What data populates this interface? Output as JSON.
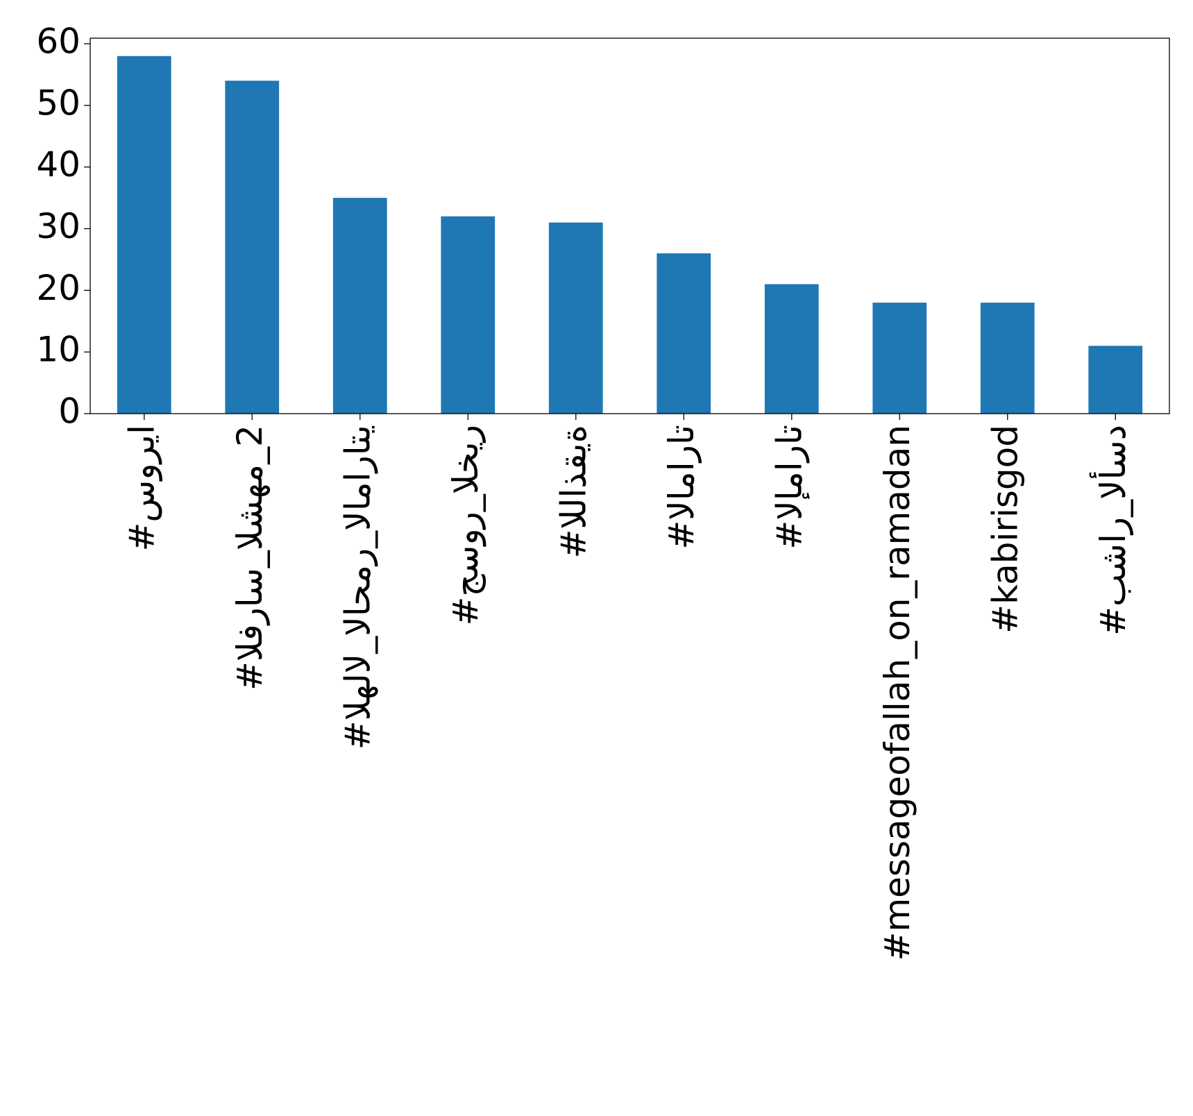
{
  "chart_data": {
    "type": "bar",
    "categories": [
      "#سوريا",
      "#الفراس_الشهم_2",
      "#الهلال_الاحمر_الاماراتي",
      "#جسور_الخير",
      "#اللاذقية",
      "#الامارات",
      "#الإمارات",
      "#messageofallah_on_ramadan",
      "#kabirisgod",
      "#بشار_الأسد"
    ],
    "values": [
      58,
      54,
      35,
      32,
      31,
      26,
      21,
      18,
      18,
      11
    ],
    "color": "#1f77b4",
    "ylim": [
      0,
      60.9
    ],
    "yticks": [
      0,
      10,
      20,
      30,
      40,
      50,
      60
    ],
    "grid": false
  }
}
